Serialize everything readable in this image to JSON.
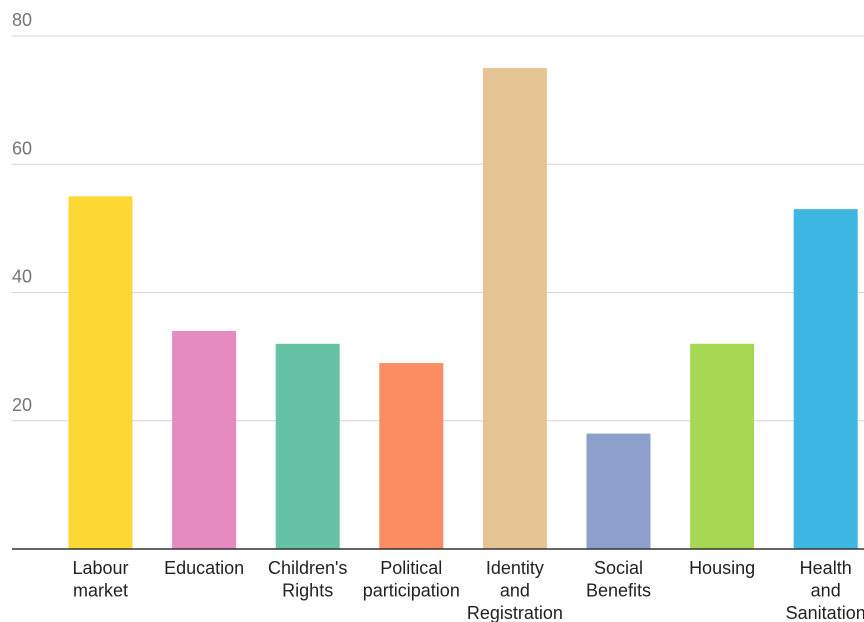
{
  "chart_data": {
    "type": "bar",
    "title": "",
    "xlabel": "",
    "ylabel": "",
    "ylim": [
      0,
      80
    ],
    "y_ticks": [
      "20",
      "40",
      "60",
      "80"
    ],
    "grid": true,
    "categories": [
      [
        "Labour",
        "market"
      ],
      [
        "Education"
      ],
      [
        "Children's",
        "Rights"
      ],
      [
        "Political",
        "participation"
      ],
      [
        "Identity",
        "and",
        "Registration"
      ],
      [
        "Social",
        "Benefits"
      ],
      [
        "Housing"
      ],
      [
        "Health",
        "and",
        "Sanitation"
      ]
    ],
    "values": [
      55,
      34,
      32,
      29,
      75,
      18,
      32,
      53
    ],
    "colors": [
      "#FDD835",
      "#E68AC2",
      "#66C2A5",
      "#FC8D62",
      "#E5C494",
      "#8DA0CB",
      "#A6D854",
      "#3DB6E2"
    ]
  }
}
